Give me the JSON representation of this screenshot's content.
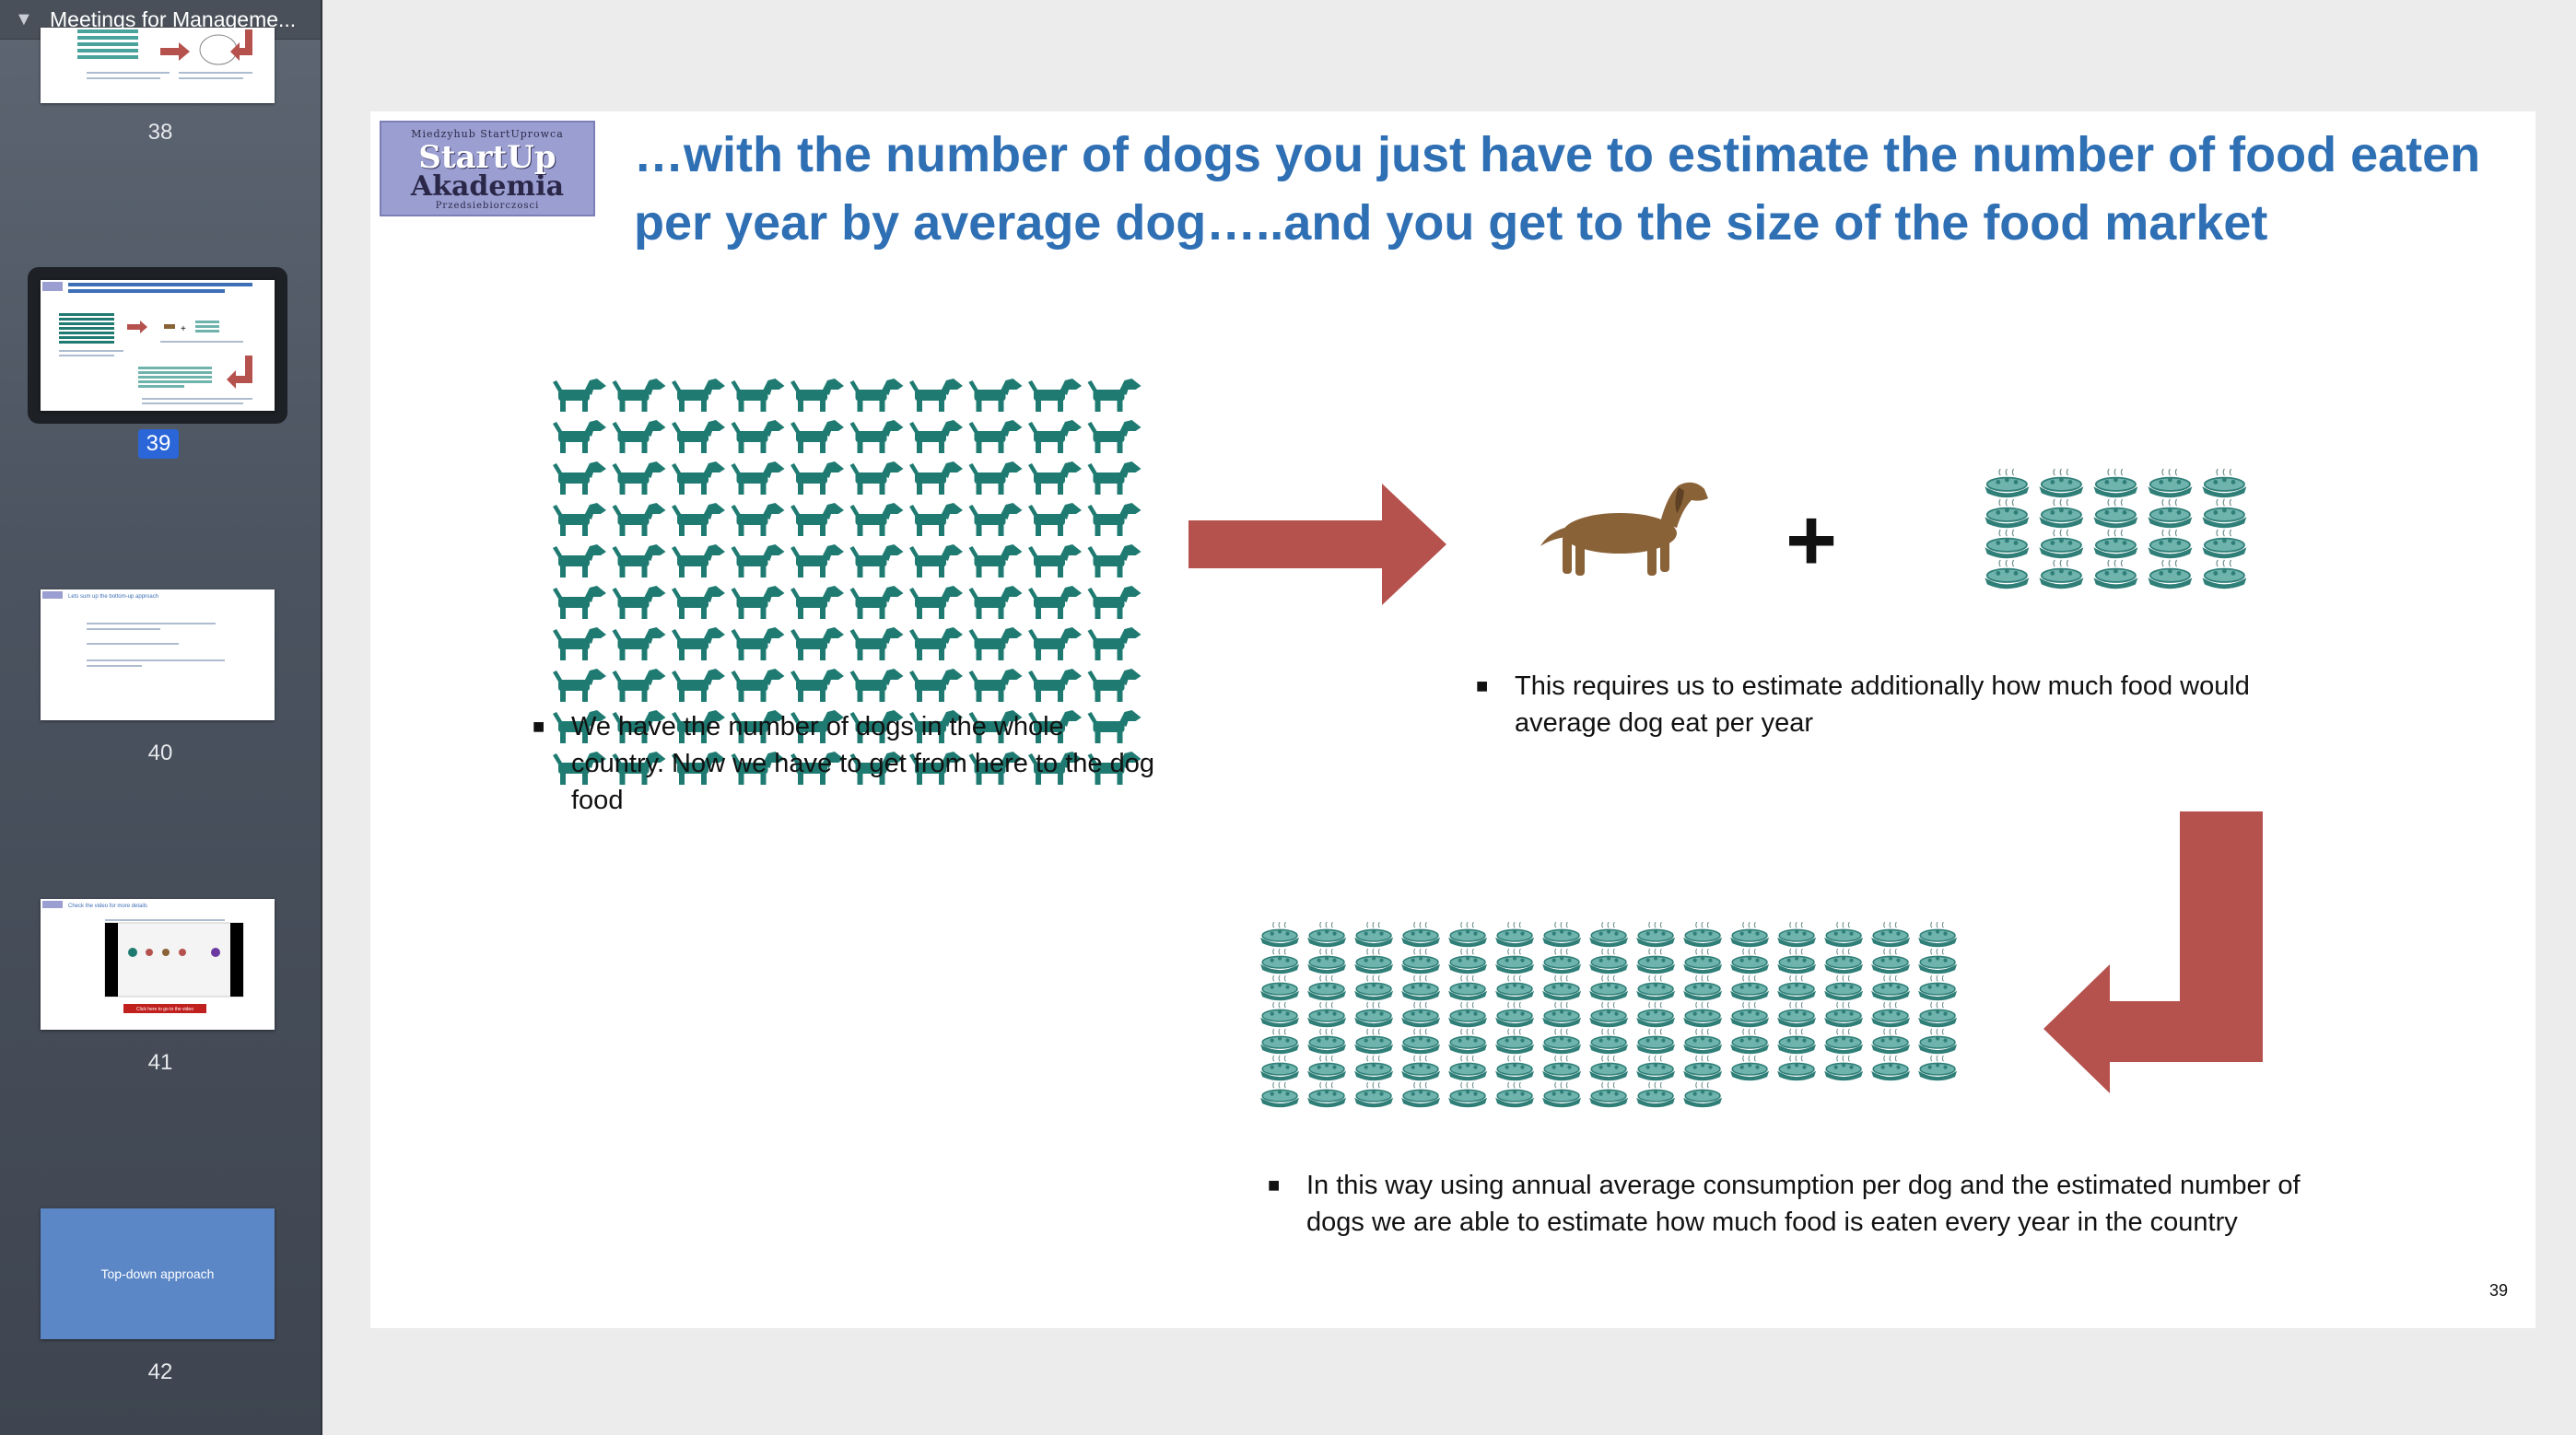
{
  "sidebar": {
    "title": "Meetings for Manageme...",
    "thumbnails": [
      {
        "number": "38"
      },
      {
        "number": "39",
        "selected": true
      },
      {
        "number": "40",
        "title": "Lets sum up the bottom-up approach"
      },
      {
        "number": "41",
        "title": "Check the video for more details",
        "button": "Click here to go to the video"
      },
      {
        "number": "42",
        "label": "Top-down approach"
      }
    ]
  },
  "slide": {
    "logo": {
      "line1": "Miedzyhub StartUprowca",
      "line2": "StartUp",
      "line3": "Akademia",
      "line4": "Przedsiebiorczosci"
    },
    "title": "…with the number of dogs you just have to estimate the number of food eaten per year by average dog…..and you get to the size of the food market",
    "bullet1": "We have the number of dogs in the whole country. Now we have to get from here to the dog food",
    "bullet2": "This requires us to estimate additionally how much food would average dog eat per year",
    "bullet3": "In this way using annual average consumption per dog and the estimated number of dogs we are able to estimate how much food is eaten every year in the country",
    "plus": "+",
    "page_number": "39"
  },
  "colors": {
    "title_blue": "#2f6fb4",
    "dog_teal": "#1f7b72",
    "arrow_red": "#b5524e",
    "dachshund_brown": "#8a6238",
    "food_bowl_teal": "#6fb3ad"
  },
  "icons": {
    "dog_icon": "dog-icon",
    "dachshund_icon": "dachshund-icon",
    "food_bowl_icon": "food-bowl-icon",
    "right_arrow": "right-arrow-icon",
    "turn_arrow": "turn-left-arrow-icon"
  },
  "grids": {
    "dogs_rows": 10,
    "dogs_cols": 10,
    "small_bowls_rows": 4,
    "small_bowls_cols": 5,
    "big_bowls_rows": 7,
    "big_bowls_cols": 15,
    "big_bowls_last_row": 10
  }
}
